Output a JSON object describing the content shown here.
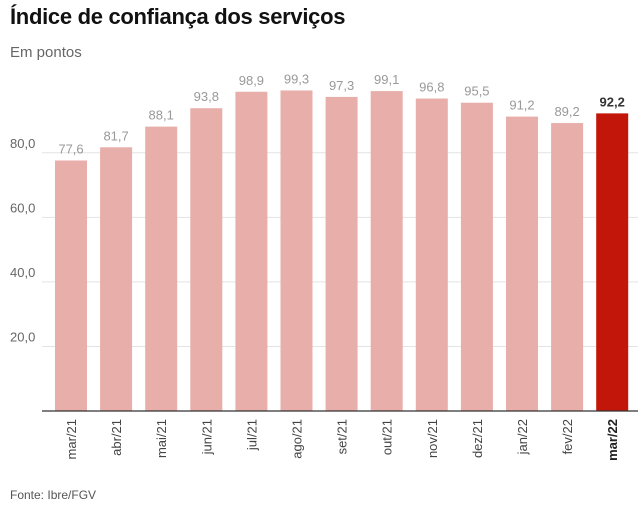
{
  "header": {
    "title": "Índice de confiança dos serviços",
    "subtitle": "Em pontos"
  },
  "footer": {
    "source": "Fonte: Ibre/FGV"
  },
  "colors": {
    "bar": "#e8aeaa",
    "highlight": "#c2160a",
    "grid": "#e3e3e3",
    "axis": "#333333",
    "label": "#999999",
    "highlight_label": "#333333"
  },
  "chart_data": {
    "type": "bar",
    "categories": [
      "mar/21",
      "abr/21",
      "mai/21",
      "jun/21",
      "jul/21",
      "ago/21",
      "set/21",
      "out/21",
      "nov/21",
      "dez/21",
      "jan/22",
      "fev/22",
      "mar/22"
    ],
    "values": [
      77.6,
      81.7,
      88.1,
      93.8,
      98.9,
      99.3,
      97.3,
      99.1,
      96.8,
      95.5,
      91.2,
      89.2,
      92.2
    ],
    "value_labels": [
      "77,6",
      "81,7",
      "88,1",
      "93,8",
      "98,9",
      "99,3",
      "97,3",
      "99,1",
      "96,8",
      "95,5",
      "91,2",
      "89,2",
      "92,2"
    ],
    "highlight_index": 12,
    "yticks": [
      20,
      40,
      60,
      80
    ],
    "ytick_labels": [
      "20,0",
      "40,0",
      "60,0",
      "80,0"
    ],
    "ylim": [
      0,
      100
    ],
    "grid": true,
    "legend": "none"
  }
}
